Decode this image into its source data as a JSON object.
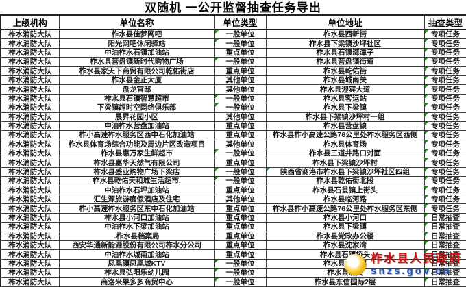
{
  "title": "双随机 一公开监督抽查任务导出",
  "table": {
    "headers": [
      "上级机构",
      "单位名称",
      "单位类型",
      "单位地址",
      "抽查类型"
    ],
    "rows": [
      {
        "org": "柞水消防大队",
        "name": "柞水县佳梦网吧",
        "type": "一般单位",
        "addr": "柞水县西新街",
        "check": "专项任务",
        "mt": 1
      },
      {
        "org": "柞水消防大队",
        "name": "阳光网吧休闲驿站",
        "type": "一般单位",
        "addr": "柞水县下梁镇沙坪社区",
        "check": "专项任务",
        "mt": 1
      },
      {
        "org": "柞水消防大队",
        "name": "中油柞水石镇加油站",
        "type": "重点单位",
        "addr": "柞水县石镇湾潭子",
        "check": "专项任务"
      },
      {
        "org": "柞水消防大队",
        "name": "柞水县营盘镇新时代购物广场",
        "type": "一般单位",
        "addr": "柞水县营盘镇街道",
        "check": "专项任务",
        "mt": 1
      },
      {
        "org": "柞水消防大队",
        "name": "柞水县家天下商贸有限公司乾佑街店",
        "type": "重点单位",
        "addr": "柞水县乾佑街",
        "check": "专项任务"
      },
      {
        "org": "柞水消防大队",
        "name": "柞水县金正大厦",
        "type": "其他单位",
        "addr": "柞水县城南关",
        "check": "专项任务"
      },
      {
        "org": "柞水消防大队",
        "name": "盘龙官邸",
        "type": "其他单位",
        "addr": "柞水县迎宾大道",
        "check": "专项任务"
      },
      {
        "org": "柞水消防大队",
        "name": "柞水县石镇智慧超市",
        "type": "一般单位",
        "addr": "柞水县客运站",
        "check": "专项任务",
        "mt": 1
      },
      {
        "org": "柞水消防大队",
        "name": "下梁镇超时空网络俱乐部",
        "type": "一般单位",
        "addr": "柞水县下梁镇",
        "check": "专项任务",
        "mt": 1
      },
      {
        "org": "柞水消防大队",
        "name": "晨昇花园小区",
        "type": "其他单位",
        "addr": "柞水县下梁镇沙坪村一组",
        "check": "专项任务"
      },
      {
        "org": "柞水消防大队",
        "name": "中油柞水营盘加油站",
        "type": "重点单位",
        "addr": "柞水县营盘镇",
        "check": "专项任务"
      },
      {
        "org": "柞水消防大队",
        "name": "柞小高速柞水服务区西中石化加油站",
        "type": "重点单位",
        "addr": "柞水县柞小高速公路76公里处柞水服务区西侧",
        "check": "专项任务"
      },
      {
        "org": "柞水消防大队",
        "name": "柞水县体育场综合功能及周边片区改造项目",
        "type": "其他单位",
        "addr": "柞水县体育场",
        "check": "专项任务"
      },
      {
        "org": "柞水消防大队",
        "name": "柞水县惠万家生鲜超市",
        "type": "一般单位",
        "addr": "柞水县三道井路口对面",
        "check": "专项任务",
        "mt": 1
      },
      {
        "org": "柞水消防大队",
        "name": "柞水县嘉华天然气有限公司",
        "type": "重点单位",
        "addr": "柞水县下梁镇沙坪村",
        "check": "专项任务"
      },
      {
        "org": "柞水消防大队",
        "name": "柞水县盛业购物广场下梁店",
        "type": "一般单位",
        "addr": "陕西省商洛市柞水县下梁镇沙坪社区四组",
        "check": "专项任务",
        "mt": 1,
        "ma": 1
      },
      {
        "org": "柞水消防大队",
        "name": "柞水县乾佑天和城生活超市.",
        "type": "一般单位",
        "addr": "柞水县乾佑街北段",
        "check": "专项任务",
        "mt": 1
      },
      {
        "org": "柞水消防大队",
        "name": "中油柞水石坪加油站",
        "type": "重点单位",
        "addr": "柞水县石瓮镇上街头",
        "check": "专项任务"
      },
      {
        "org": "柞水消防大队",
        "name": "汇生源旅游度假酒店及住宅",
        "type": "其他单位",
        "addr": "柞水县临河路",
        "check": "专项任务"
      },
      {
        "org": "柞水消防大队",
        "name": "柞小高速柞水服务区东中石化加油站",
        "type": "重点单位",
        "addr": "柞水县柞小高速公路76公里处柞水服务区东侧",
        "check": "专项任务"
      },
      {
        "org": "柞水消防大队",
        "name": "柞水县小河口加油站",
        "type": "重点单位",
        "addr": "柞水县小河口",
        "check": "日常抽查"
      },
      {
        "org": "柞水消防大队",
        "name": "中油柞水下梁加油站",
        "type": "重点单位",
        "addr": "柞水县下梁镇",
        "check": "日常抽查"
      },
      {
        "org": "柞水消防大队",
        "name": ".柞水县档案局",
        "type": "重点单位",
        "addr": "柞水县党政办公楼",
        "check": "日常抽查"
      },
      {
        "org": "柞水消防大队",
        "name": "西安华通新能源股份有限公司柞水分公司",
        "type": "重点单位",
        "addr": "柞水县沈家湾",
        "check": "日常抽查"
      },
      {
        "org": "柞水消防大队",
        "name": "中油柞水城南加油站",
        "type": "重点单位",
        "addr": "柞水县石镇桥头",
        "check": "日常抽查"
      },
      {
        "org": "柞水消防大队",
        "name": "凤凰镇凤凰城KTV",
        "type": "一般单位",
        "addr": "柞水县凤凰镇",
        "check": "日常抽查",
        "mt": 1
      },
      {
        "org": "柞水消防大队",
        "name": "柞水县弘阳乐幼儿园",
        "type": "一般单位",
        "addr": "柞水县北关",
        "check": "日常抽查",
        "mt": 1
      },
      {
        "org": "柞水消防大队",
        "name": "商洛米果多多商贸中心",
        "type": "一般单位",
        "addr": "柞水县东信国际2层",
        "check": "日常抽查",
        "mt": 1
      }
    ]
  },
  "watermark": {
    "name": "柞水县人民政府",
    "url": "snzs.gov.cn",
    "logo": "gov-seal-icon"
  },
  "colors": {
    "triangle": "#1e8e1e",
    "wm_red": "#c40f0f",
    "wm_blue": "#1d55c0"
  }
}
